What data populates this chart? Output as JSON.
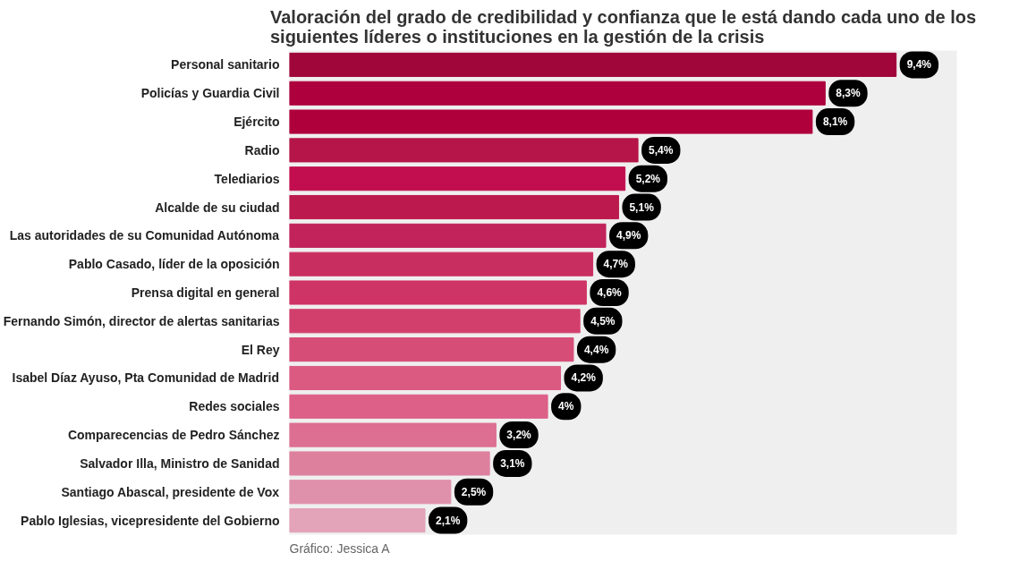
{
  "chart_data": {
    "type": "bar",
    "orientation": "horizontal",
    "title": "Valoración del grado de credibilidad y confianza que le está dando cada uno de los siguientes líderes o instituciones en la gestión de la crisis",
    "categories": [
      "Personal sanitario",
      "Policías y Guardia Civil",
      "Ejército",
      "Radio",
      "Telediarios",
      "Alcalde de su ciudad",
      "Las autoridades de su Comunidad Autónoma",
      "Pablo Casado, líder de la oposición",
      "Prensa digital en general",
      "Fernando Simón, director de alertas sanitarias",
      "El Rey",
      "Isabel Díaz Ayuso, Pta Comunidad de Madrid",
      "Redes sociales",
      "Comparecencias de Pedro Sánchez",
      "Salvador Illa, Ministro de Sanidad",
      "Santiago Abascal, presidente de Vox",
      "Pablo Iglesias, vicepresidente del Gobierno"
    ],
    "values": [
      9.4,
      8.3,
      8.1,
      5.4,
      5.2,
      5.1,
      4.9,
      4.7,
      4.6,
      4.5,
      4.4,
      4.2,
      4.0,
      3.2,
      3.1,
      2.5,
      2.1
    ],
    "value_labels": [
      "9,4%",
      "8,3%",
      "8,1%",
      "5,4%",
      "5,2%",
      "5,1%",
      "4,9%",
      "4,7%",
      "4,6%",
      "4,5%",
      "4,4%",
      "4,2%",
      "4%",
      "3,2%",
      "3,1%",
      "2,5%",
      "2,1%"
    ],
    "colors": [
      "#a0063a",
      "#ad003c",
      "#b0003c",
      "#b51548",
      "#c20e4e",
      "#bc1a4f",
      "#c2235a",
      "#c92e60",
      "#cf3466",
      "#d23f6c",
      "#d64d78",
      "#da5a82",
      "#dd6088",
      "#dd6f92",
      "#dd809e",
      "#df90aa",
      "#e3a3b8"
    ],
    "annotations": [
      "Gráfico: Jessica A"
    ],
    "grid": false
  }
}
